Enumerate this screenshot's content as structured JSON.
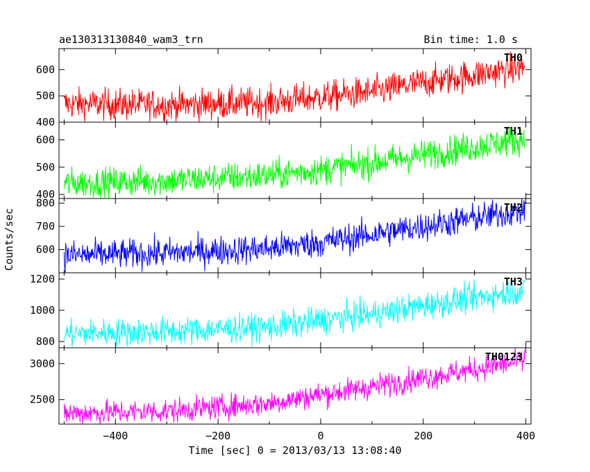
{
  "header": {
    "title": "ae130313130840_wam3_trn",
    "bin_time": "Bin time: 1.0 s"
  },
  "chart_data": {
    "type": "line",
    "grid": false,
    "xlabel": "Time [sec] 0 = 2013/03/13 13:08:40",
    "ylabel": "Counts/sec",
    "xlim": [
      -510,
      410
    ],
    "x_ticks": [
      -400,
      -200,
      0,
      200,
      400
    ],
    "x_tick_labels": [
      "−400",
      "−200",
      "0",
      "200",
      "400"
    ],
    "x_data_range": [
      -500,
      398
    ],
    "panels": [
      {
        "name": "TH0",
        "color": "#ff0000",
        "ylim": [
          400,
          680
        ],
        "y_ticks": [
          400,
          500,
          600
        ],
        "noise": 30,
        "trend": [
          [
            -500,
            470
          ],
          [
            -300,
            465
          ],
          [
            -100,
            475
          ],
          [
            0,
            495
          ],
          [
            100,
            515
          ],
          [
            200,
            550
          ],
          [
            300,
            580
          ],
          [
            400,
            610
          ]
        ]
      },
      {
        "name": "TH1",
        "color": "#00ff00",
        "ylim": [
          385,
          665
        ],
        "y_ticks": [
          400,
          500,
          600
        ],
        "noise": 28,
        "trend": [
          [
            -500,
            440
          ],
          [
            -300,
            450
          ],
          [
            -100,
            470
          ],
          [
            0,
            490
          ],
          [
            100,
            515
          ],
          [
            200,
            545
          ],
          [
            300,
            575
          ],
          [
            400,
            605
          ]
        ]
      },
      {
        "name": "TH2",
        "color": "#0000ff",
        "ylim": [
          500,
          820
        ],
        "y_ticks": [
          600,
          700,
          800
        ],
        "noise": 32,
        "trend": [
          [
            -500,
            575
          ],
          [
            -300,
            585
          ],
          [
            -100,
            605
          ],
          [
            0,
            630
          ],
          [
            100,
            665
          ],
          [
            200,
            700
          ],
          [
            300,
            735
          ],
          [
            400,
            770
          ]
        ]
      },
      {
        "name": "TH3",
        "color": "#00ffff",
        "ylim": [
          760,
          1240
        ],
        "y_ticks": [
          800,
          1000,
          1200
        ],
        "noise": 45,
        "trend": [
          [
            -500,
            850
          ],
          [
            -300,
            865
          ],
          [
            -100,
            890
          ],
          [
            0,
            935
          ],
          [
            100,
            975
          ],
          [
            200,
            1030
          ],
          [
            300,
            1080
          ],
          [
            400,
            1130
          ]
        ]
      },
      {
        "name": "TH0123",
        "color": "#ff00ff",
        "ylim": [
          2160,
          3220
        ],
        "y_ticks": [
          2500,
          3000
        ],
        "noise": 85,
        "trend": [
          [
            -500,
            2310
          ],
          [
            -300,
            2340
          ],
          [
            -100,
            2450
          ],
          [
            0,
            2570
          ],
          [
            100,
            2680
          ],
          [
            200,
            2800
          ],
          [
            300,
            2920
          ],
          [
            400,
            3050
          ]
        ]
      }
    ]
  }
}
